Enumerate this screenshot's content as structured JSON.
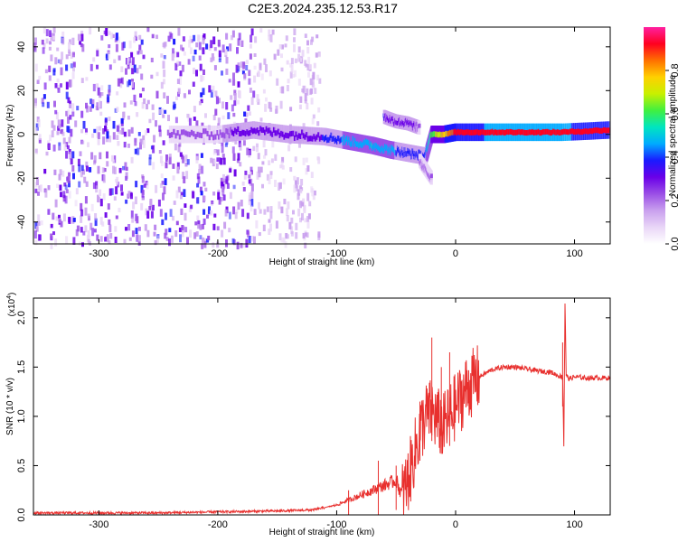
{
  "title": "C2E3.2024.235.12.53.R17",
  "colorbar": {
    "label": "Normalized spectral amplitude",
    "ticks": [
      {
        "value": 0.0,
        "label": "0.0"
      },
      {
        "value": 0.2,
        "label": "0.2"
      },
      {
        "value": 0.4,
        "label": "0.4"
      },
      {
        "value": 0.6,
        "label": "0.6"
      },
      {
        "value": 0.8,
        "label": "0.8"
      }
    ],
    "range": [
      0,
      1
    ],
    "colormap": [
      "#ffffff",
      "#e9d6f7",
      "#c9a0ee",
      "#9b4fe6",
      "#6a00e8",
      "#1a1aff",
      "#00aaff",
      "#00e5c0",
      "#40f040",
      "#c8f000",
      "#ffd000",
      "#ff7000",
      "#ff0020",
      "#ff20a0"
    ]
  },
  "chart_data": [
    {
      "type": "heatmap",
      "panel": "spectrogram",
      "xlabel": "Height of straight line (km)",
      "ylabel": "Frequency (Hz)",
      "xlim": [
        -355,
        130
      ],
      "ylim": [
        -50,
        49
      ],
      "x_ticks": [
        {
          "value": -300,
          "label": "-300"
        },
        {
          "value": -200,
          "label": "-200"
        },
        {
          "value": -100,
          "label": "-100"
        },
        {
          "value": 0,
          "label": "0"
        },
        {
          "value": 100,
          "label": "100"
        }
      ],
      "y_ticks": [
        {
          "value": -40,
          "label": "-40"
        },
        {
          "value": -20,
          "label": "-20"
        },
        {
          "value": 0,
          "label": "0"
        },
        {
          "value": 20,
          "label": "20"
        },
        {
          "value": 40,
          "label": "40"
        }
      ],
      "grid": false,
      "noise_region": {
        "x": [
          -355,
          -115
        ],
        "freq": [
          -50,
          49
        ],
        "level": 0.12
      },
      "signal_track": {
        "x": [
          -240,
          -200,
          -170,
          -140,
          -110,
          -90,
          -70,
          -55,
          -45,
          -35,
          -25,
          -20,
          -10,
          0,
          30,
          60,
          90,
          130
        ],
        "frequency_hz": [
          0,
          0,
          2,
          0,
          -1,
          -3,
          -5,
          -7,
          -8,
          -9,
          -10,
          0,
          0,
          1,
          1,
          1,
          1,
          2
        ],
        "amplitude": [
          0.2,
          0.25,
          0.3,
          0.3,
          0.35,
          0.45,
          0.5,
          0.45,
          0.4,
          0.35,
          0.4,
          0.6,
          0.75,
          0.9,
          0.95,
          0.95,
          0.95,
          0.9
        ]
      },
      "secondary_track": {
        "x": [
          -60,
          -50,
          -40,
          -30
        ],
        "frequency_hz": [
          8,
          6,
          5,
          3
        ],
        "amplitude": [
          0.35,
          0.3,
          0.3,
          0.25
        ]
      },
      "descending_branch": {
        "x": [
          -30,
          -25,
          -20
        ],
        "frequency_hz": [
          -12,
          -16,
          -20
        ],
        "amplitude": [
          0.25,
          0.25,
          0.2
        ]
      }
    },
    {
      "type": "line",
      "panel": "snr",
      "xlabel": "Height of straight line (km)",
      "ylabel": "SNR (10 * v/v)",
      "y_multiplier": "(x10⁴)",
      "y_multiplier_base": "(x10",
      "y_multiplier_exp": "4",
      "y_multiplier_close": ")",
      "xlim": [
        -355,
        130
      ],
      "ylim": [
        0,
        2.2
      ],
      "x_ticks": [
        {
          "value": -300,
          "label": "-300"
        },
        {
          "value": -200,
          "label": "-200"
        },
        {
          "value": -100,
          "label": "-100"
        },
        {
          "value": 0,
          "label": "0"
        },
        {
          "value": 100,
          "label": "100"
        }
      ],
      "y_ticks": [
        {
          "value": 0.0,
          "label": "0.0"
        },
        {
          "value": 0.5,
          "label": "0.5"
        },
        {
          "value": 1.0,
          "label": "1.0"
        },
        {
          "value": 1.5,
          "label": "1.5"
        },
        {
          "value": 2.0,
          "label": "2.0"
        }
      ],
      "grid": false,
      "series": [
        {
          "color": "#e8302e",
          "x": [
            -355,
            -300,
            -250,
            -200,
            -150,
            -120,
            -100,
            -80,
            -60,
            -50,
            -45,
            -40,
            -35,
            -30,
            -25,
            -20,
            -15,
            -10,
            -5,
            0,
            10,
            20,
            30,
            40,
            50,
            60,
            70,
            80,
            85,
            90,
            91,
            92,
            93,
            95,
            100,
            110,
            120,
            130
          ],
          "y": [
            0.02,
            0.02,
            0.02,
            0.03,
            0.04,
            0.05,
            0.1,
            0.2,
            0.3,
            0.35,
            0.2,
            0.35,
            0.6,
            0.85,
            1.0,
            1.05,
            0.95,
            0.9,
            1.0,
            1.1,
            1.3,
            1.4,
            1.47,
            1.5,
            1.5,
            1.48,
            1.46,
            1.45,
            1.42,
            1.4,
            0.7,
            2.15,
            1.42,
            1.38,
            1.4,
            1.39,
            1.39,
            1.39
          ]
        }
      ],
      "spikes": [
        {
          "x": -90,
          "y": 0.25
        },
        {
          "x": -65,
          "y": 0.55
        },
        {
          "x": -50,
          "y": 0.5
        },
        {
          "x": -30,
          "y": 1.15
        },
        {
          "x": -20,
          "y": 1.8
        },
        {
          "x": -12,
          "y": 1.5
        },
        {
          "x": -5,
          "y": 1.65
        },
        {
          "x": 90,
          "y": 1.75
        }
      ]
    }
  ]
}
